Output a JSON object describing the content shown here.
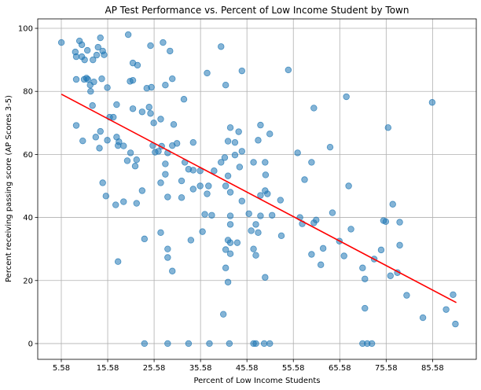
{
  "chart_data": {
    "type": "scatter",
    "title": "AP Test Performance vs. Percent of Low Income Student by Town",
    "xlabel": "Percent of Low Income Students",
    "ylabel": "Percent receiving passing score (AP Scores 3-5)",
    "xlim": [
      0.5,
      95.0
    ],
    "ylim": [
      -5,
      103
    ],
    "xticks": [
      "5.58",
      "15.58",
      "25.58",
      "35.58",
      "45.58",
      "55.58",
      "65.58",
      "75.58",
      "85.58"
    ],
    "yticks": [
      "0",
      "20",
      "40",
      "60",
      "80",
      "100"
    ],
    "grid": true,
    "colors": {
      "points": "#1f77b4",
      "regression": "#ff0000",
      "grid": "#b0b0b0"
    },
    "regression": {
      "x": [
        5.6,
        90.7
      ],
      "y": [
        79.1,
        13.0
      ]
    },
    "points": [
      [
        5.6,
        95.5
      ],
      [
        9.5,
        96.0
      ],
      [
        10.0,
        94.8
      ],
      [
        13.5,
        94.0
      ],
      [
        14.0,
        97.0
      ],
      [
        20.0,
        98.0
      ],
      [
        24.8,
        94.5
      ],
      [
        27.5,
        95.5
      ],
      [
        29.0,
        92.8
      ],
      [
        14.5,
        92.8
      ],
      [
        8.6,
        92.5
      ],
      [
        11.2,
        93.0
      ],
      [
        13.2,
        91.5
      ],
      [
        14.8,
        91.6
      ],
      [
        8.8,
        91.0
      ],
      [
        10.0,
        91.0
      ],
      [
        10.6,
        90.0
      ],
      [
        12.4,
        90.0
      ],
      [
        21.0,
        89.0
      ],
      [
        22.0,
        88.3
      ],
      [
        40.0,
        94.2
      ],
      [
        44.5,
        86.5
      ],
      [
        54.5,
        86.8
      ],
      [
        37.0,
        85.8
      ],
      [
        29.5,
        84.0
      ],
      [
        8.8,
        83.8
      ],
      [
        10.5,
        83.8
      ],
      [
        11.0,
        84.2
      ],
      [
        11.3,
        83.8
      ],
      [
        12.6,
        83.0
      ],
      [
        14.3,
        84.0
      ],
      [
        20.4,
        83.2
      ],
      [
        21.0,
        83.5
      ],
      [
        41.0,
        82.0
      ],
      [
        11.8,
        82.0
      ],
      [
        15.5,
        81.2
      ],
      [
        24.0,
        81.0
      ],
      [
        25.0,
        81.3
      ],
      [
        28.0,
        82.0
      ],
      [
        11.9,
        80.0
      ],
      [
        32.0,
        77.5
      ],
      [
        12.3,
        75.5
      ],
      [
        17.5,
        75.8
      ],
      [
        21.0,
        74.5
      ],
      [
        24.5,
        75.0
      ],
      [
        60.0,
        74.7
      ],
      [
        67.0,
        78.3
      ],
      [
        85.5,
        76.5
      ],
      [
        16.0,
        71.8
      ],
      [
        16.8,
        71.8
      ],
      [
        24.8,
        73.0
      ],
      [
        23.0,
        73.5
      ],
      [
        25.5,
        70.0
      ],
      [
        27.0,
        71.2
      ],
      [
        29.8,
        69.5
      ],
      [
        8.8,
        69.2
      ],
      [
        14.0,
        67.3
      ],
      [
        13.0,
        65.5
      ],
      [
        15.5,
        64.5
      ],
      [
        10.2,
        64.3
      ],
      [
        17.5,
        65.5
      ],
      [
        18.0,
        64.0
      ],
      [
        17.8,
        62.8
      ],
      [
        19.0,
        62.7
      ],
      [
        13.8,
        62.0
      ],
      [
        25.3,
        62.8
      ],
      [
        26.5,
        61.0
      ],
      [
        27.2,
        62.6
      ],
      [
        29.5,
        62.8
      ],
      [
        30.5,
        63.5
      ],
      [
        34.0,
        63.8
      ],
      [
        41.5,
        64.2
      ],
      [
        43.0,
        63.8
      ],
      [
        44.5,
        61.0
      ],
      [
        48.0,
        64.5
      ],
      [
        42.0,
        68.5
      ],
      [
        43.8,
        67.2
      ],
      [
        48.5,
        69.3
      ],
      [
        50.5,
        66.5
      ],
      [
        20.5,
        60.5
      ],
      [
        25.8,
        60.7
      ],
      [
        28.5,
        60.5
      ],
      [
        19.8,
        58.0
      ],
      [
        21.8,
        58.3
      ],
      [
        21.5,
        56.3
      ],
      [
        28.0,
        57.0
      ],
      [
        32.2,
        57.5
      ],
      [
        33.0,
        55.3
      ],
      [
        34.0,
        55.0
      ],
      [
        35.5,
        54.8
      ],
      [
        38.5,
        54.8
      ],
      [
        40.0,
        57.5
      ],
      [
        40.8,
        59.0
      ],
      [
        43.0,
        59.8
      ],
      [
        44.0,
        56.0
      ],
      [
        47.0,
        57.5
      ],
      [
        49.5,
        57.5
      ],
      [
        49.6,
        53.5
      ],
      [
        41.5,
        53.2
      ],
      [
        23.0,
        48.5
      ],
      [
        28.0,
        53.7
      ],
      [
        27.0,
        51.0
      ],
      [
        31.5,
        51.6
      ],
      [
        14.5,
        51.0
      ],
      [
        15.2,
        46.8
      ],
      [
        19.0,
        45.0
      ],
      [
        17.3,
        44.0
      ],
      [
        21.8,
        44.5
      ],
      [
        28.5,
        46.5
      ],
      [
        31.5,
        46.3
      ],
      [
        34.0,
        49.0
      ],
      [
        35.5,
        50.0
      ],
      [
        37.0,
        47.5
      ],
      [
        37.3,
        50.0
      ],
      [
        41.0,
        50.0
      ],
      [
        42.0,
        48.0
      ],
      [
        44.5,
        45.2
      ],
      [
        48.5,
        47.0
      ],
      [
        49.5,
        48.5
      ],
      [
        50.0,
        47.5
      ],
      [
        52.8,
        45.5
      ],
      [
        56.5,
        60.5
      ],
      [
        58.0,
        52.0
      ],
      [
        59.5,
        57.5
      ],
      [
        63.5,
        62.3
      ],
      [
        36.5,
        41.0
      ],
      [
        38.0,
        40.7
      ],
      [
        42.0,
        40.5
      ],
      [
        46.0,
        41.2
      ],
      [
        48.5,
        40.5
      ],
      [
        51.0,
        40.7
      ],
      [
        42.0,
        37.8
      ],
      [
        47.5,
        37.8
      ],
      [
        57.0,
        40.0
      ],
      [
        57.5,
        38.0
      ],
      [
        60.0,
        38.3
      ],
      [
        60.5,
        39.2
      ],
      [
        64.0,
        41.5
      ],
      [
        75.0,
        39.0
      ],
      [
        75.5,
        38.7
      ],
      [
        78.5,
        38.5
      ],
      [
        77.0,
        44.2
      ],
      [
        67.5,
        50.0
      ],
      [
        68.0,
        36.3
      ],
      [
        65.5,
        32.5
      ],
      [
        62.0,
        30.2
      ],
      [
        59.5,
        28.3
      ],
      [
        61.5,
        25.0
      ],
      [
        66.5,
        27.8
      ],
      [
        70.5,
        24.0
      ],
      [
        71.0,
        20.5
      ],
      [
        73.0,
        26.8
      ],
      [
        74.5,
        29.7
      ],
      [
        76.0,
        68.5
      ],
      [
        78.5,
        31.2
      ],
      [
        76.5,
        21.5
      ],
      [
        78.0,
        22.5
      ],
      [
        80.0,
        15.3
      ],
      [
        83.5,
        8.2
      ],
      [
        88.5,
        10.8
      ],
      [
        90.0,
        15.5
      ],
      [
        90.5,
        6.2
      ],
      [
        71.0,
        11.2
      ],
      [
        70.5,
        0.0
      ],
      [
        71.5,
        0.0
      ],
      [
        72.5,
        0.0
      ],
      [
        36.0,
        35.5
      ],
      [
        33.5,
        32.8
      ],
      [
        41.5,
        32.8
      ],
      [
        42.0,
        32.0
      ],
      [
        43.5,
        32.0
      ],
      [
        46.5,
        35.8
      ],
      [
        48.0,
        35.2
      ],
      [
        47.0,
        30.0
      ],
      [
        47.5,
        28.0
      ],
      [
        53.0,
        34.2
      ],
      [
        41.0,
        29.8
      ],
      [
        42.0,
        28.5
      ],
      [
        41.0,
        24.0
      ],
      [
        41.5,
        19.5
      ],
      [
        49.5,
        21.0
      ],
      [
        40.5,
        9.3
      ],
      [
        27.0,
        35.2
      ],
      [
        28.5,
        30.0
      ],
      [
        28.5,
        27.3
      ],
      [
        29.5,
        23.0
      ],
      [
        23.5,
        33.2
      ],
      [
        17.8,
        26.0
      ],
      [
        23.5,
        0.0
      ],
      [
        28.5,
        0.0
      ],
      [
        33.0,
        0.0
      ],
      [
        37.5,
        0.0
      ],
      [
        41.8,
        0.0
      ],
      [
        47.0,
        0.0
      ],
      [
        47.5,
        0.0
      ],
      [
        49.3,
        0.0
      ],
      [
        50.5,
        0.0
      ]
    ]
  }
}
